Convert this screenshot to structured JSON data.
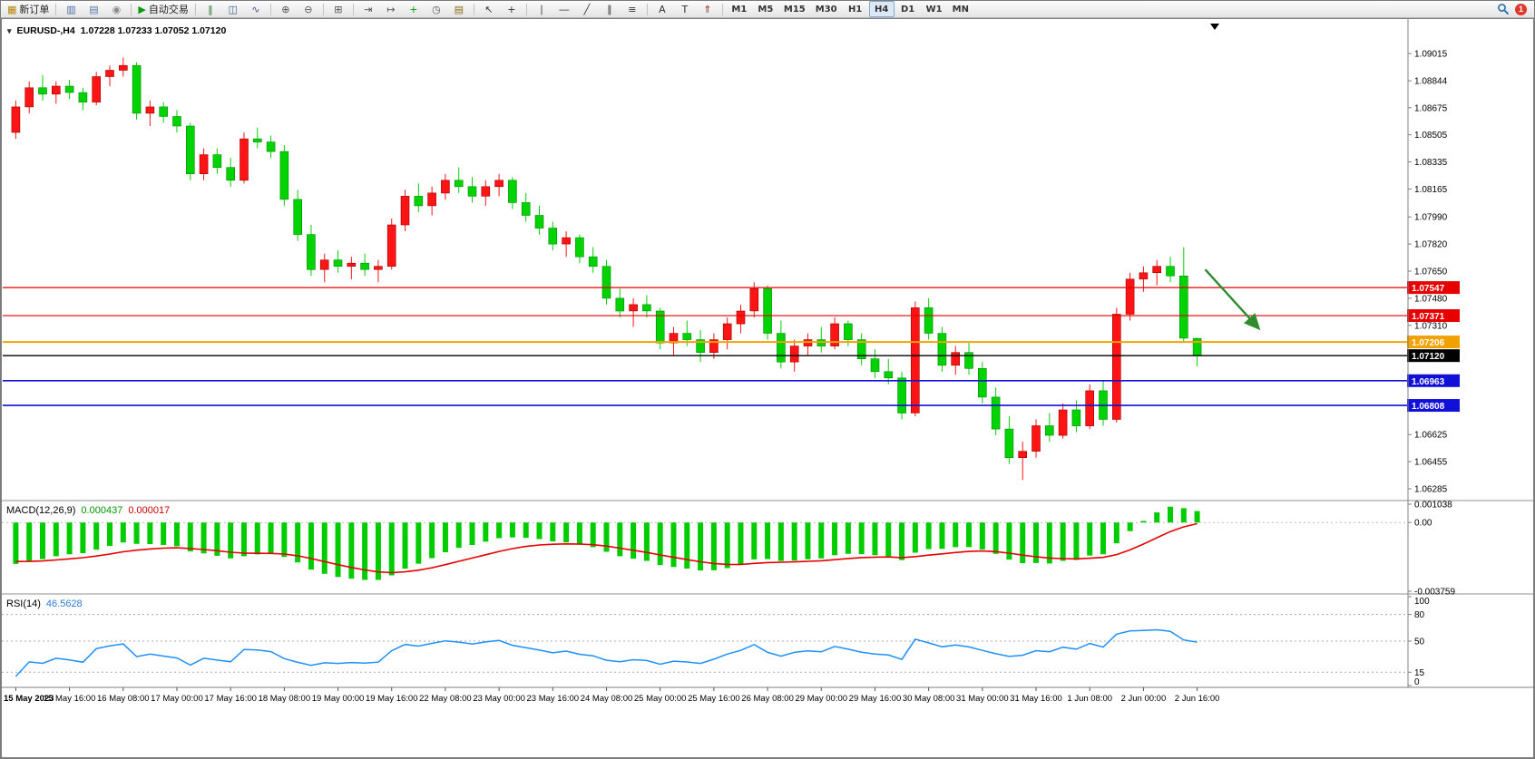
{
  "toolbar": {
    "buttons": [
      {
        "name": "new-order-button",
        "glyph": "▦",
        "color": "#b8860b",
        "label": "新订单"
      },
      {
        "sep": true
      },
      {
        "name": "chart-open-icon",
        "glyph": "▥",
        "color": "#4a6da0"
      },
      {
        "name": "print-icon",
        "glyph": "▤",
        "color": "#5c7aa8"
      },
      {
        "name": "community-icon",
        "glyph": "◉",
        "color": "#8a8a8a"
      },
      {
        "sep": true
      },
      {
        "name": "autotrading-button",
        "glyph": "▶",
        "color": "#0a9a0a",
        "label": "自动交易"
      },
      {
        "sep": true
      },
      {
        "name": "bar-chart-icon",
        "glyph": "‖",
        "color": "#3a7a3a"
      },
      {
        "name": "candlestick-chart-icon",
        "glyph": "◫",
        "color": "#3a5a8a"
      },
      {
        "name": "line-chart-icon",
        "glyph": "∿",
        "color": "#3a5a8a"
      },
      {
        "sep": true
      },
      {
        "name": "zoom-in-icon",
        "glyph": "⊕",
        "color": "#555555"
      },
      {
        "name": "zoom-out-icon",
        "glyph": "⊖",
        "color": "#555555"
      },
      {
        "sep": true
      },
      {
        "name": "tile-windows-icon",
        "glyph": "⊞",
        "color": "#555555"
      },
      {
        "sep": true
      },
      {
        "name": "auto-scroll-icon",
        "glyph": "⇥",
        "color": "#555555"
      },
      {
        "name": "chart-shift-icon",
        "glyph": "↦",
        "color": "#555555"
      },
      {
        "name": "indicators-icon",
        "glyph": "+",
        "color": "#0a9a0a"
      },
      {
        "name": "periods-icon",
        "glyph": "◷",
        "color": "#555555"
      },
      {
        "name": "templates-icon",
        "glyph": "▤",
        "color": "#8a6d1a"
      },
      {
        "sep": true
      },
      {
        "name": "cursor-icon",
        "glyph": "↖",
        "color": "#333333"
      },
      {
        "name": "crosshair-icon",
        "glyph": "+",
        "color": "#333333"
      },
      {
        "sep": true
      },
      {
        "name": "vertical-line-icon",
        "glyph": "∣",
        "color": "#333333"
      },
      {
        "name": "horizontal-line-icon",
        "glyph": "―",
        "color": "#333333"
      },
      {
        "name": "trendline-icon",
        "glyph": "╱",
        "color": "#333333"
      },
      {
        "name": "channel-icon",
        "glyph": "∥",
        "color": "#333333"
      },
      {
        "name": "fibonacci-icon",
        "glyph": "≡",
        "color": "#333333"
      },
      {
        "sep": true
      },
      {
        "name": "text-icon",
        "glyph": "A",
        "color": "#333333"
      },
      {
        "name": "text-label-icon",
        "glyph": "T",
        "color": "#333333"
      },
      {
        "name": "arrows-icon",
        "glyph": "⇑",
        "color": "#8a2a2a"
      },
      {
        "sep": true
      }
    ],
    "timeframes": [
      {
        "label": "M1"
      },
      {
        "label": "M5"
      },
      {
        "label": "M15"
      },
      {
        "label": "M30"
      },
      {
        "label": "H1"
      },
      {
        "label": "H4",
        "active": true
      },
      {
        "label": "D1"
      },
      {
        "label": "W1"
      },
      {
        "label": "MN"
      }
    ],
    "right_icons": [
      {
        "name": "search-icon"
      },
      {
        "name": "notifications-badge"
      }
    ],
    "notification_count": "1"
  },
  "chart": {
    "symbol_period": "EURUSD-,H4",
    "ohlc": "1.07228 1.07233 1.07052 1.07120"
  },
  "chart_data": {
    "type": "candlestick",
    "symbol": "EURUSD",
    "period": "H4",
    "price_range": {
      "top": 1.09015,
      "bottom": 1.06285
    },
    "colors": {
      "bull": "#fe1414",
      "bull_border": "#9b0000",
      "bear": "#00d300",
      "bear_border": "#008a0a"
    },
    "candles": [
      [
        1.0852,
        1.0872,
        1.0848,
        1.0868
      ],
      [
        1.0868,
        1.0884,
        1.0864,
        1.088
      ],
      [
        1.088,
        1.0888,
        1.0872,
        1.0876
      ],
      [
        1.0876,
        1.0884,
        1.087,
        1.0881
      ],
      [
        1.0881,
        1.0885,
        1.0873,
        1.0877
      ],
      [
        1.0877,
        1.088,
        1.0866,
        1.0871
      ],
      [
        1.0871,
        1.089,
        1.0869,
        1.0887
      ],
      [
        1.0887,
        1.0894,
        1.0881,
        1.0891
      ],
      [
        1.0891,
        1.0899,
        1.0887,
        1.0894
      ],
      [
        1.0894,
        1.0896,
        1.086,
        1.0864
      ],
      [
        1.0864,
        1.0872,
        1.0856,
        1.0868
      ],
      [
        1.0868,
        1.0871,
        1.0858,
        1.0862
      ],
      [
        1.0862,
        1.0866,
        1.0852,
        1.0856
      ],
      [
        1.0856,
        1.0858,
        1.0822,
        1.0826
      ],
      [
        1.0826,
        1.0842,
        1.0822,
        1.0838
      ],
      [
        1.0838,
        1.0842,
        1.0826,
        1.083
      ],
      [
        1.083,
        1.0836,
        1.0818,
        1.0822
      ],
      [
        1.0822,
        1.0852,
        1.082,
        1.0848
      ],
      [
        1.0848,
        1.0855,
        1.0842,
        1.0846
      ],
      [
        1.0846,
        1.085,
        1.0836,
        1.084
      ],
      [
        1.084,
        1.0844,
        1.0806,
        1.081
      ],
      [
        1.081,
        1.0816,
        1.0784,
        1.0788
      ],
      [
        1.0788,
        1.0794,
        1.0762,
        1.0766
      ],
      [
        1.0766,
        1.0776,
        1.0758,
        1.0772
      ],
      [
        1.0772,
        1.0778,
        1.0764,
        1.0768
      ],
      [
        1.0768,
        1.0774,
        1.076,
        1.077
      ],
      [
        1.077,
        1.0776,
        1.0762,
        1.0766
      ],
      [
        1.0766,
        1.0772,
        1.0758,
        1.0768
      ],
      [
        1.0768,
        1.0798,
        1.0766,
        1.0794
      ],
      [
        1.0794,
        1.0816,
        1.079,
        1.0812
      ],
      [
        1.0812,
        1.082,
        1.0802,
        1.0806
      ],
      [
        1.0806,
        1.0818,
        1.08,
        1.0814
      ],
      [
        1.0814,
        1.0826,
        1.081,
        1.0822
      ],
      [
        1.0822,
        1.083,
        1.0814,
        1.0818
      ],
      [
        1.0818,
        1.0824,
        1.0808,
        1.0812
      ],
      [
        1.0812,
        1.0822,
        1.0806,
        1.0818
      ],
      [
        1.0818,
        1.0826,
        1.0812,
        1.0822
      ],
      [
        1.0822,
        1.0824,
        1.0804,
        1.0808
      ],
      [
        1.0808,
        1.0814,
        1.0796,
        1.08
      ],
      [
        1.08,
        1.0806,
        1.0788,
        1.0792
      ],
      [
        1.0792,
        1.0796,
        1.0778,
        1.0782
      ],
      [
        1.0782,
        1.079,
        1.0774,
        1.0786
      ],
      [
        1.0786,
        1.0788,
        1.077,
        1.0774
      ],
      [
        1.0774,
        1.078,
        1.0764,
        1.0768
      ],
      [
        1.0768,
        1.0772,
        1.0744,
        1.0748
      ],
      [
        1.0748,
        1.0754,
        1.0736,
        1.074
      ],
      [
        1.074,
        1.0748,
        1.073,
        1.0744
      ],
      [
        1.0744,
        1.075,
        1.0736,
        1.074
      ],
      [
        1.074,
        1.0742,
        1.0716,
        1.072
      ],
      [
        1.072,
        1.073,
        1.0712,
        1.0726
      ],
      [
        1.0726,
        1.0734,
        1.0718,
        1.0722
      ],
      [
        1.0722,
        1.0728,
        1.0708,
        1.0714
      ],
      [
        1.0714,
        1.0726,
        1.071,
        1.0722
      ],
      [
        1.0722,
        1.0736,
        1.0716,
        1.0732
      ],
      [
        1.0732,
        1.0744,
        1.0726,
        1.074
      ],
      [
        1.074,
        1.0758,
        1.0736,
        1.0754
      ],
      [
        1.0754,
        1.0756,
        1.0722,
        1.0726
      ],
      [
        1.0726,
        1.0734,
        1.0704,
        1.0708
      ],
      [
        1.0708,
        1.0722,
        1.0702,
        1.0718
      ],
      [
        1.0718,
        1.0726,
        1.0712,
        1.0722
      ],
      [
        1.0722,
        1.073,
        1.0714,
        1.0718
      ],
      [
        1.0718,
        1.0736,
        1.0716,
        1.0732
      ],
      [
        1.0732,
        1.0734,
        1.0718,
        1.0722
      ],
      [
        1.0722,
        1.0726,
        1.0706,
        1.071
      ],
      [
        1.071,
        1.0716,
        1.0698,
        1.0702
      ],
      [
        1.0702,
        1.071,
        1.0694,
        1.0698
      ],
      [
        1.0698,
        1.0702,
        1.0672,
        1.0676
      ],
      [
        1.0676,
        1.0746,
        1.0674,
        1.0742
      ],
      [
        1.0742,
        1.0748,
        1.0722,
        1.0726
      ],
      [
        1.0726,
        1.073,
        1.0702,
        1.0706
      ],
      [
        1.0706,
        1.0718,
        1.07,
        1.0714
      ],
      [
        1.0714,
        1.072,
        1.07,
        1.0704
      ],
      [
        1.0704,
        1.0708,
        1.0682,
        1.0686
      ],
      [
        1.0686,
        1.0692,
        1.0662,
        1.0666
      ],
      [
        1.0666,
        1.0674,
        1.0644,
        1.0648
      ],
      [
        1.0648,
        1.0658,
        1.0634,
        1.0652
      ],
      [
        1.0652,
        1.0672,
        1.0648,
        1.0668
      ],
      [
        1.0668,
        1.0676,
        1.0658,
        1.0662
      ],
      [
        1.0662,
        1.0682,
        1.066,
        1.0678
      ],
      [
        1.0678,
        1.0684,
        1.0664,
        1.0668
      ],
      [
        1.0668,
        1.0694,
        1.0666,
        1.069
      ],
      [
        1.069,
        1.0696,
        1.0668,
        1.0672
      ],
      [
        1.0672,
        1.0742,
        1.067,
        1.0738
      ],
      [
        1.0738,
        1.0764,
        1.0734,
        1.076
      ],
      [
        1.076,
        1.0768,
        1.0752,
        1.0764
      ],
      [
        1.0764,
        1.0772,
        1.0756,
        1.0768
      ],
      [
        1.0768,
        1.0774,
        1.0758,
        1.0762
      ],
      [
        1.0762,
        1.078,
        1.072,
        1.0723
      ],
      [
        1.07228,
        1.07233,
        1.07052,
        1.0712
      ]
    ],
    "price_ticks": [
      "1.09015",
      "1.08844",
      "1.08675",
      "1.08505",
      "1.08335",
      "1.08165",
      "1.07990",
      "1.07820",
      "1.07650",
      "1.07480",
      "1.07310",
      "1.06625",
      "1.06455",
      "1.06285"
    ],
    "hlines": [
      {
        "name": "resistance-line-upper",
        "price": "1.07547",
        "value": 1.07547,
        "color": "#e60000",
        "width": 1.2
      },
      {
        "name": "resistance-line-lower",
        "price": "1.07371",
        "value": 1.07371,
        "color": "#e60000",
        "width": 1.2
      },
      {
        "name": "pivot-line-orange",
        "price": "1.07206",
        "value": 1.07206,
        "color": "#f2a200",
        "width": 2
      },
      {
        "name": "current-price-line",
        "price": "1.07120",
        "value": 1.0712,
        "color": "#000000",
        "width": 1.4
      },
      {
        "name": "support-line-upper",
        "price": "1.06963",
        "value": 1.06963,
        "color": "#1010d8",
        "width": 1.6
      },
      {
        "name": "support-line-lower",
        "price": "1.06808",
        "value": 1.06808,
        "color": "#1010d8",
        "width": 1.6
      }
    ],
    "time_labels": [
      "15 May 2023",
      "15 May 16:00",
      "16 May 08:00",
      "17 May 00:00",
      "17 May 16:00",
      "18 May 08:00",
      "19 May 00:00",
      "19 May 16:00",
      "22 May 08:00",
      "23 May 00:00",
      "23 May 16:00",
      "24 May 08:00",
      "25 May 00:00",
      "25 May 16:00",
      "26 May 08:00",
      "29 May 00:00",
      "29 May 16:00",
      "30 May 08:00",
      "31 May 00:00",
      "31 May 16:00",
      "1 Jun 08:00",
      "2 Jun 00:00",
      "2 Jun 16:00"
    ],
    "label_every": 4,
    "indicators": [
      {
        "name": "macd",
        "label_parts": [
          {
            "text": "MACD(12,26,9)",
            "color": "#000000"
          },
          {
            "text": "0.000437",
            "color": "#009600"
          },
          {
            "text": "0.000017",
            "color": "#d00000"
          }
        ],
        "fast": 12,
        "slow": 26,
        "signal": 9,
        "current_macd": "0.000437",
        "current_signal": "0.000017",
        "scale_max": 0.001038,
        "scale_min": -0.003759,
        "scale_labels": [
          "0.001038",
          "0.00",
          "-0.003759"
        ],
        "hist_color": "#00cc00",
        "signal_color": "#e60000"
      },
      {
        "name": "rsi",
        "label_parts": [
          {
            "text": "RSI(14)",
            "color": "#000000"
          },
          {
            "text": "46.5628",
            "color": "#2b7fd4"
          }
        ],
        "period": 14,
        "current": "46.5628",
        "levels": [
          80,
          50,
          15
        ],
        "scale_labels": [
          "100",
          "80",
          "50",
          "15",
          "0"
        ],
        "line_color": "#1e90ff"
      }
    ],
    "annotation_arrow": {
      "from": {
        "index": 88.6,
        "price": 1.0766
      },
      "to": {
        "index": 92.6,
        "price": 1.0729
      },
      "color": "#2e8b2e"
    }
  }
}
